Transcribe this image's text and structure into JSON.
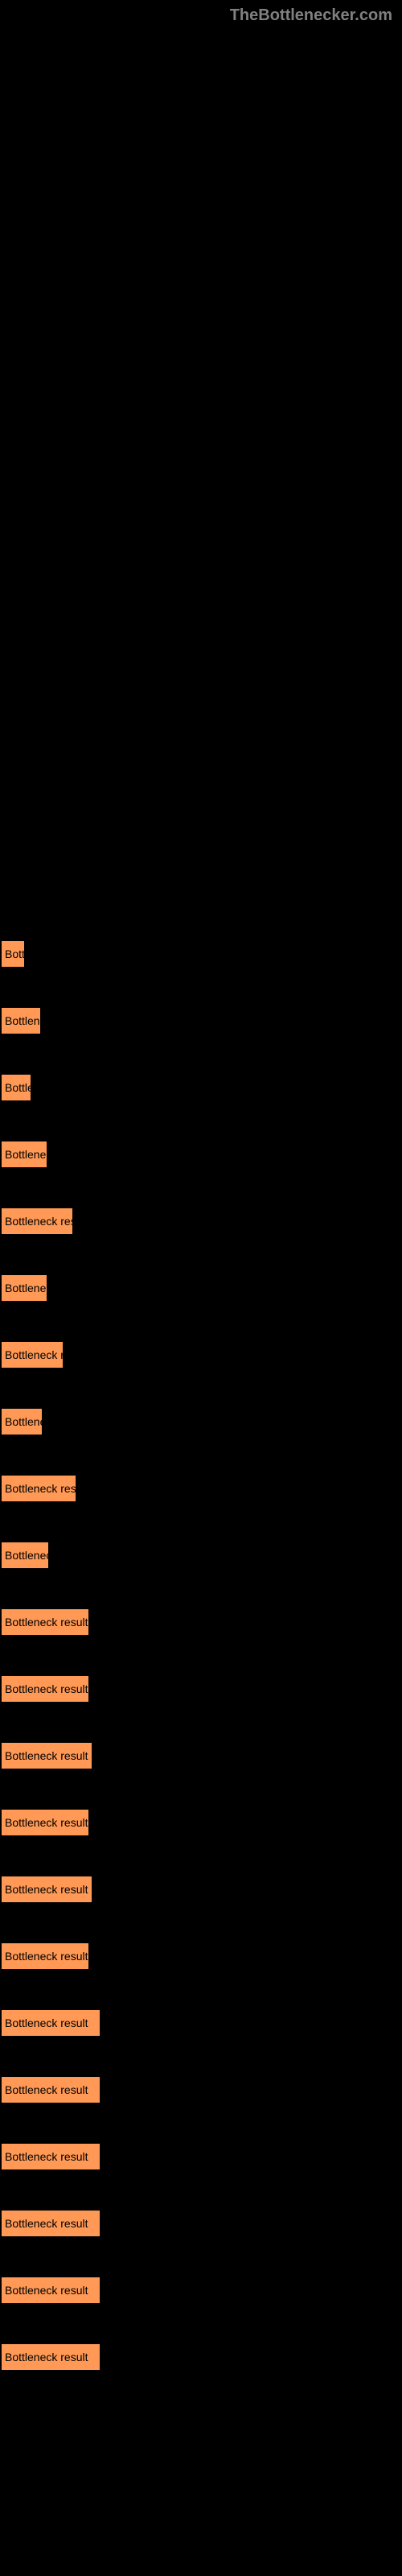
{
  "header": {
    "title": "TheBottlenecker.com"
  },
  "results": {
    "label_text": "Bottleneck result",
    "bar_color": "#ff9955",
    "text_color": "#000000",
    "background_color": "#000000",
    "items": [
      {
        "width": 28
      },
      {
        "width": 48
      },
      {
        "width": 36
      },
      {
        "width": 56
      },
      {
        "width": 88
      },
      {
        "width": 56
      },
      {
        "width": 76
      },
      {
        "width": 50
      },
      {
        "width": 92
      },
      {
        "width": 58
      },
      {
        "width": 108
      },
      {
        "width": 108
      },
      {
        "width": 112
      },
      {
        "width": 108
      },
      {
        "width": 112
      },
      {
        "width": 108
      },
      {
        "width": 122
      },
      {
        "width": 122
      },
      {
        "width": 122
      },
      {
        "width": 122
      },
      {
        "width": 122
      },
      {
        "width": 122
      }
    ]
  }
}
